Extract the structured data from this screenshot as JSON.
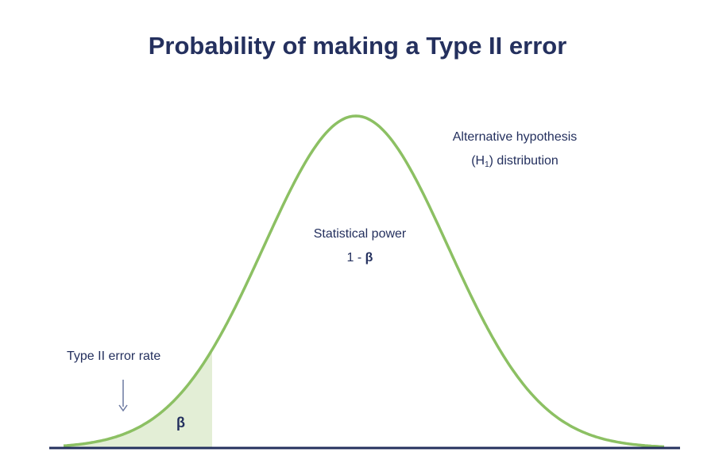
{
  "title": "Probability of making a Type II error",
  "alt_hypothesis": {
    "line1": "Alternative hypothesis",
    "line2_prefix": "(H",
    "line2_sub": "1",
    "line2_suffix": ") distribution"
  },
  "power": {
    "line1": "Statistical power",
    "line2_prefix": "1 - ",
    "line2_symbol": "β"
  },
  "type2": {
    "label": "Type II error rate",
    "area_symbol": "β"
  },
  "colors": {
    "curve": "#8cc063",
    "shade": "#e3eed6",
    "axis": "#24305e",
    "text": "#24305e",
    "arrow": "#6b78a0"
  }
}
